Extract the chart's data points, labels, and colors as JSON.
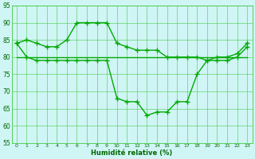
{
  "line1_x": [
    0,
    1,
    2,
    3,
    4,
    5,
    6,
    7,
    8,
    9,
    10,
    11,
    12,
    13,
    14,
    15,
    16,
    17,
    18,
    19,
    20,
    21,
    22,
    23
  ],
  "line1_y": [
    84,
    85,
    84,
    83,
    83,
    85,
    90,
    90,
    90,
    90,
    84,
    83,
    82,
    82,
    82,
    80,
    80,
    80,
    80,
    79,
    80,
    80,
    81,
    84
  ],
  "line2_x": [
    0,
    1,
    2,
    3,
    4,
    5,
    6,
    7,
    8,
    9,
    10,
    11,
    12,
    13,
    14,
    15,
    16,
    17,
    18,
    19,
    20,
    21,
    22,
    23
  ],
  "line2_y": [
    84,
    80,
    79,
    79,
    79,
    79,
    79,
    79,
    79,
    79,
    68,
    67,
    67,
    63,
    64,
    64,
    67,
    67,
    75,
    79,
    79,
    79,
    80,
    83
  ],
  "line3_x": [
    0,
    1,
    2,
    3,
    4,
    5,
    6,
    7,
    8,
    9,
    10,
    11,
    12,
    13,
    14,
    15,
    16,
    17,
    18,
    19,
    20,
    21,
    22,
    23
  ],
  "line3_y": [
    80,
    80,
    80,
    80,
    80,
    80,
    80,
    80,
    80,
    80,
    80,
    80,
    80,
    80,
    80,
    80,
    80,
    80,
    80,
    80,
    80,
    80,
    80,
    80
  ],
  "xlim": [
    -0.5,
    23.5
  ],
  "ylim": [
    55,
    95
  ],
  "yticks": [
    55,
    60,
    65,
    70,
    75,
    80,
    85,
    90,
    95
  ],
  "xticks": [
    0,
    1,
    2,
    3,
    4,
    5,
    6,
    7,
    8,
    9,
    10,
    11,
    12,
    13,
    14,
    15,
    16,
    17,
    18,
    19,
    20,
    21,
    22,
    23
  ],
  "xlabel": "Humidité relative (%)",
  "line_color": "#00aa00",
  "bg_color": "#d0f5f5",
  "grid_color": "#44cc44",
  "marker": "+",
  "marker_size": 4,
  "linewidth": 1.0
}
